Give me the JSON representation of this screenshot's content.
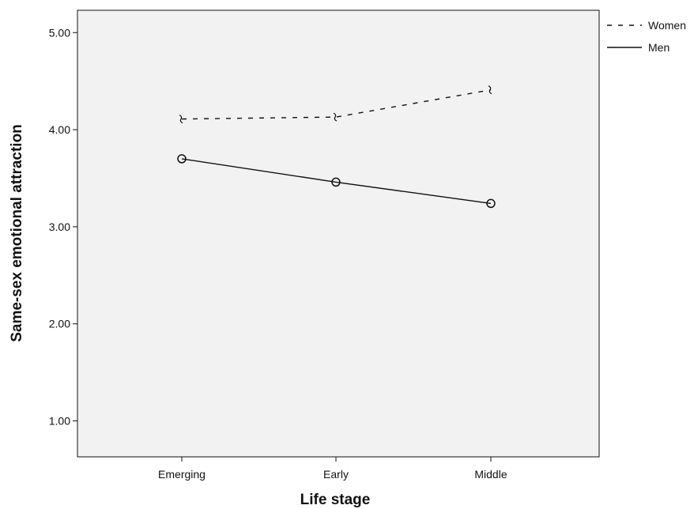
{
  "chart_data": {
    "type": "line",
    "categories": [
      "Emerging",
      "Early",
      "Middle"
    ],
    "series": [
      {
        "name": "Women",
        "values": [
          4.11,
          4.13,
          4.41
        ],
        "line_style": "dashed",
        "marker": "none"
      },
      {
        "name": "Men",
        "values": [
          3.7,
          3.46,
          3.24
        ],
        "line_style": "solid",
        "marker": "open-circle"
      }
    ],
    "xlabel": "Life stage",
    "ylabel": "Same-sex emotional attraction",
    "ylim": [
      0.63,
      5.23
    ],
    "yticks": [
      "1.00",
      "2.00",
      "3.00",
      "4.00",
      "5.00"
    ],
    "grid": false,
    "legend_position": "top-right, outside plot",
    "colors": {
      "plot_background": "#f2f2f2",
      "line": "#111111"
    }
  }
}
